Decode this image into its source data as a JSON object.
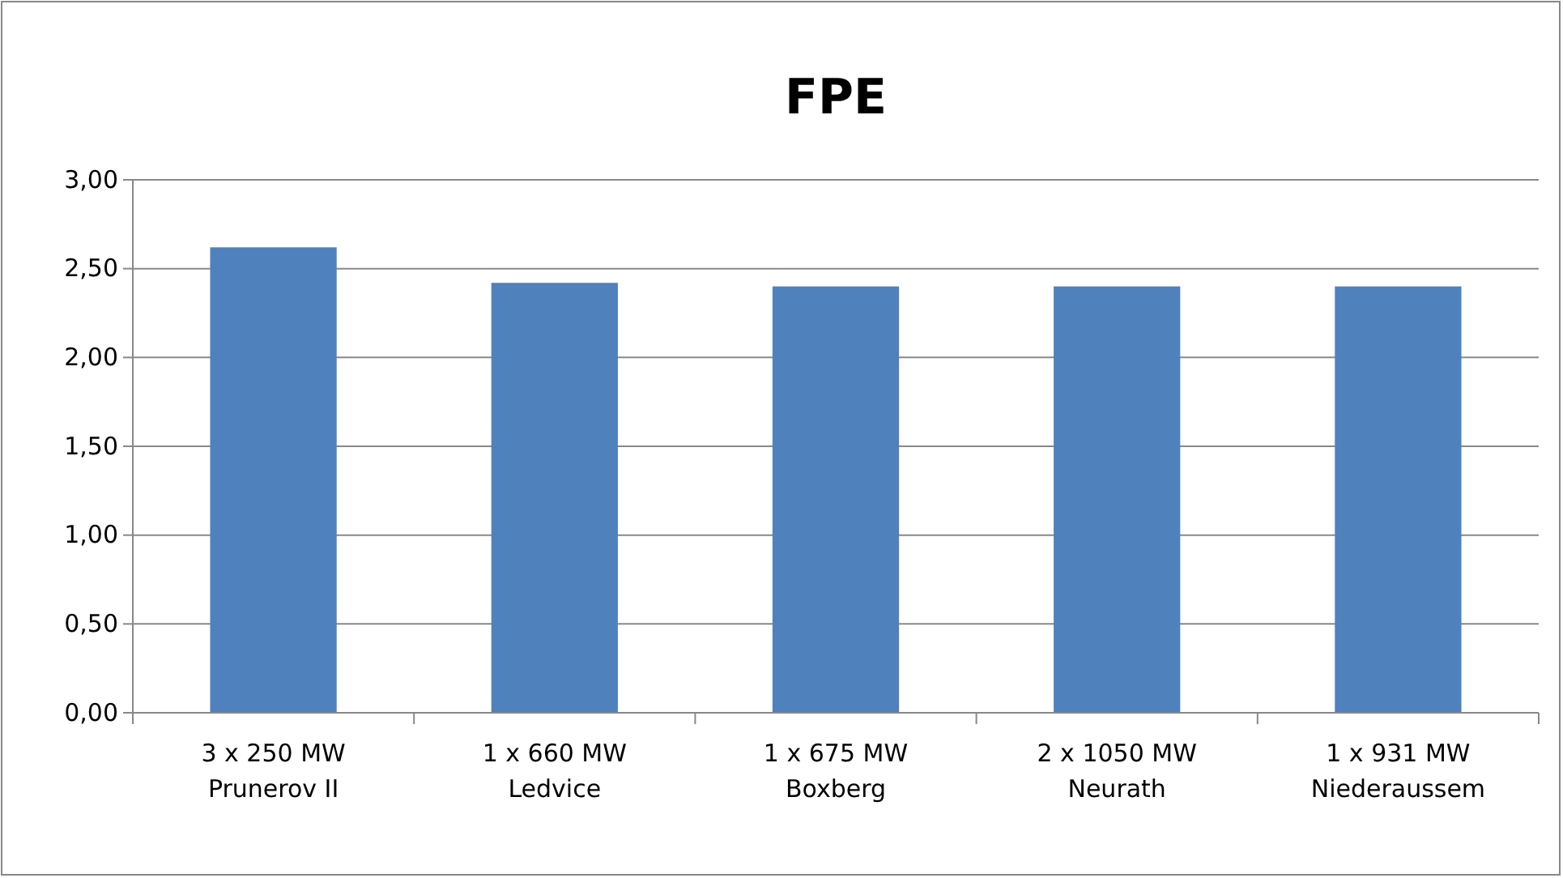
{
  "chart_data": {
    "type": "bar",
    "title": "FPE",
    "categories": [
      "3 x 250 MW\nPrunerov II",
      "1 x 660 MW\nLedvice",
      "1 x 675 MW\nBoxberg",
      "2 x 1050 MW\nNeurath",
      "1 x 931 MW\nNiederaussem"
    ],
    "values": [
      2.62,
      2.42,
      2.4,
      2.4,
      2.4
    ],
    "color": "#4f81bd",
    "ylim": [
      0,
      3
    ],
    "yticks": [
      {
        "value": 0,
        "label": "0,00"
      },
      {
        "value": 0.5,
        "label": "0,50"
      },
      {
        "value": 1,
        "label": "1,00"
      },
      {
        "value": 1.5,
        "label": "1,50"
      },
      {
        "value": 2,
        "label": "2,00"
      },
      {
        "value": 2.5,
        "label": "2,50"
      },
      {
        "value": 3,
        "label": "3,00"
      }
    ],
    "grid": "y"
  }
}
